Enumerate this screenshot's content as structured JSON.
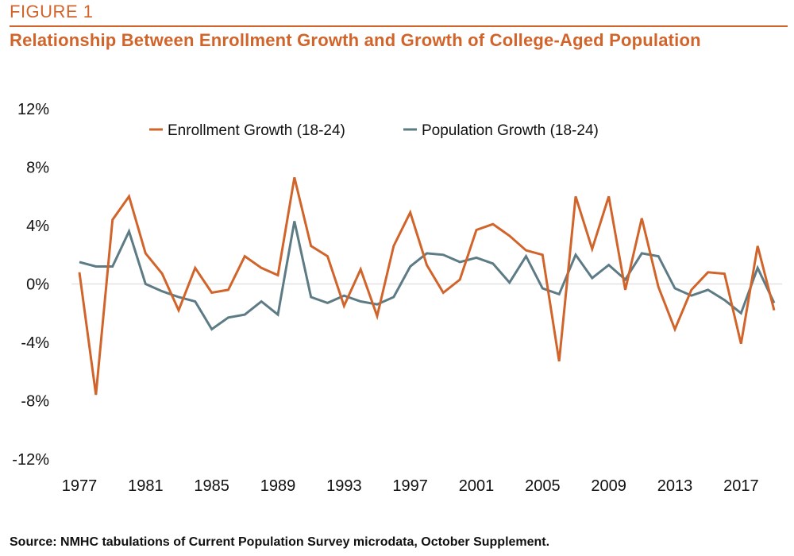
{
  "figure_label": "FIGURE 1",
  "source": "Source: NMHC tabulations of Current Population Survey microdata, October Supplement.",
  "colors": {
    "enrollment": "#d1642a",
    "population": "#5d7b85",
    "accent": "#d1642a"
  },
  "chart_data": {
    "type": "line",
    "title": "Relationship Between Enrollment Growth and Growth of College-Aged Population",
    "xlabel": "",
    "ylabel": "",
    "x": [
      1977,
      1978,
      1979,
      1980,
      1981,
      1982,
      1983,
      1984,
      1985,
      1986,
      1987,
      1988,
      1989,
      1990,
      1991,
      1992,
      1993,
      1994,
      1995,
      1996,
      1997,
      1998,
      1999,
      2000,
      2001,
      2002,
      2003,
      2004,
      2005,
      2006,
      2007,
      2008,
      2009,
      2010,
      2011,
      2012,
      2013,
      2014,
      2015,
      2016,
      2017,
      2018,
      2019
    ],
    "xticks": [
      "1977",
      "1981",
      "1985",
      "1989",
      "1993",
      "1997",
      "2001",
      "2005",
      "2009",
      "2013",
      "2017"
    ],
    "yticks": [
      "12%",
      "8%",
      "4%",
      "0%",
      "-4%",
      "-8%",
      "-12%"
    ],
    "ylim": [
      -12,
      12
    ],
    "legend_position": "top",
    "series": [
      {
        "name": "Enrollment Growth (18-24)",
        "values": [
          0.8,
          -7.6,
          4.4,
          6.0,
          2.1,
          0.7,
          -1.8,
          1.1,
          -0.6,
          -0.4,
          1.9,
          1.1,
          0.6,
          7.3,
          2.6,
          1.9,
          -1.5,
          1.0,
          -2.2,
          2.6,
          4.9,
          1.3,
          -0.6,
          0.3,
          3.7,
          4.1,
          3.3,
          2.3,
          2.0,
          -5.3,
          6.0,
          2.4,
          6.0,
          -0.4,
          4.5,
          -0.2,
          -3.1,
          -0.4,
          0.8,
          0.7,
          -4.1,
          2.6,
          -1.8
        ]
      },
      {
        "name": "Population Growth (18-24)",
        "values": [
          1.5,
          1.2,
          1.2,
          3.6,
          0.0,
          -0.5,
          -0.9,
          -1.2,
          -3.1,
          -2.3,
          -2.1,
          -1.2,
          -2.1,
          4.3,
          -0.9,
          -1.3,
          -0.8,
          -1.2,
          -1.4,
          -0.9,
          1.2,
          2.1,
          2.0,
          1.5,
          1.8,
          1.4,
          0.1,
          1.9,
          -0.3,
          -0.7,
          2.0,
          0.4,
          1.3,
          0.3,
          2.1,
          1.9,
          -0.3,
          -0.8,
          -0.4,
          -1.1,
          -2.0,
          1.1,
          -1.3
        ]
      }
    ]
  }
}
